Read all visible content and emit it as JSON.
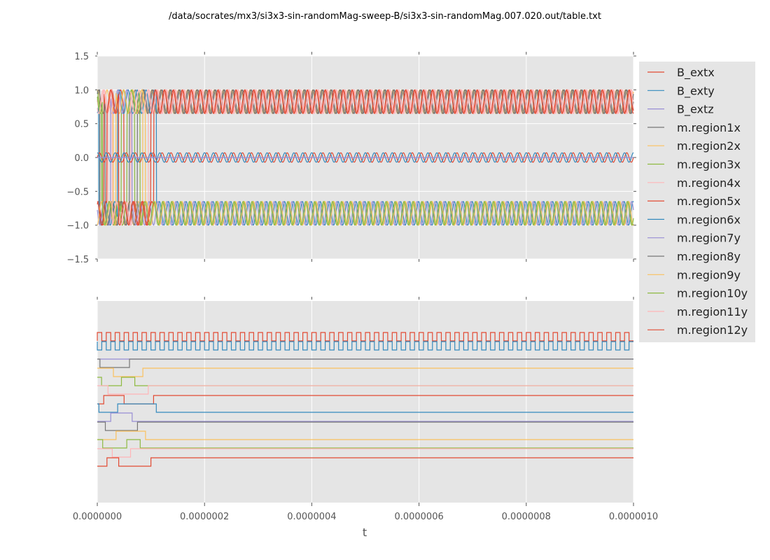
{
  "chart_data": [
    {
      "type": "line",
      "panel": "top",
      "title": "/data/socrates/mx3/si3x3-sin-randomMag-sweep-B/si3x3-sin-randomMag.007.020.out/table.txt",
      "xlabel": "",
      "ylabel": "",
      "xlim": [
        0,
        1e-06
      ],
      "ylim": [
        -1.5,
        1.5
      ],
      "yticks": [
        "1.5",
        "1.0",
        "0.5",
        "0.0",
        "−0.5",
        "−1.0",
        "−1.5"
      ],
      "ytick_values": [
        1.5,
        1.0,
        0.5,
        0.0,
        -0.5,
        -1.0,
        -1.5
      ],
      "xtick_values": [
        0,
        2e-07,
        4e-07,
        6e-07,
        8e-07,
        1e-06
      ],
      "grid": true,
      "description": "B_ext components oscillate sinusoidally near 0 (amplitude ~0.07); region magnetizations switch between +1 and -1 until t~1.1e-7, then settle: upper band oscillating 0.65-1.0, lower band oscillating -0.65 to -1.0",
      "bands": [
        {
          "name": "upper",
          "min": 0.65,
          "max": 1.0
        },
        {
          "name": "center",
          "min": -0.07,
          "max": 0.07
        },
        {
          "name": "lower",
          "min": -1.0,
          "max": -0.65
        }
      ],
      "switching_end_t": 1.1e-07
    },
    {
      "type": "line",
      "panel": "bottom",
      "xlabel": "t",
      "xlim": [
        0,
        1e-06
      ],
      "xticks": [
        "0.0000000",
        "0.0000002",
        "0.0000004",
        "0.0000006",
        "0.0000008",
        "0.0000010"
      ],
      "xtick_values": [
        0,
        2e-07,
        4e-07,
        6e-07,
        8e-07,
        1e-06
      ],
      "grid": true,
      "description": "Digital (binarized) traces stacked per series: B_extx and B_exty as square waves; region traces show switching steps before ~1.1e-7 and constant afterwards"
    }
  ],
  "legend": {
    "placement": "right",
    "entries": [
      {
        "label": "B_extx",
        "color": "#E24A33"
      },
      {
        "label": "B_exty",
        "color": "#348ABD"
      },
      {
        "label": "B_extz",
        "color": "#988ED5"
      },
      {
        "label": "m.region1x",
        "color": "#777777"
      },
      {
        "label": "m.region2x",
        "color": "#FBC15E"
      },
      {
        "label": "m.region3x",
        "color": "#8EBA42"
      },
      {
        "label": "m.region4x",
        "color": "#FFB5B8"
      },
      {
        "label": "m.region5x",
        "color": "#E24A33"
      },
      {
        "label": "m.region6x",
        "color": "#348ABD"
      },
      {
        "label": "m.region7y",
        "color": "#988ED5"
      },
      {
        "label": "m.region8y",
        "color": "#777777"
      },
      {
        "label": "m.region9y",
        "color": "#FBC15E"
      },
      {
        "label": "m.region10y",
        "color": "#8EBA42"
      },
      {
        "label": "m.region11y",
        "color": "#FFB5B8"
      },
      {
        "label": "m.region12y",
        "color": "#E24A33"
      }
    ]
  },
  "colors": {
    "axes_bg": "#E5E5E5",
    "grid": "#FFFFFF",
    "legend_bg": "#E5E5E5"
  }
}
